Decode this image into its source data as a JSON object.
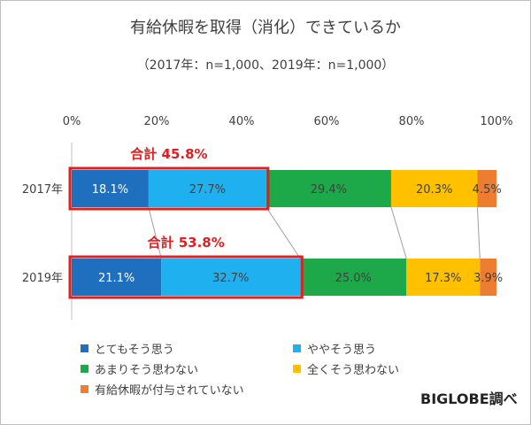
{
  "chart_data": {
    "type": "bar",
    "orientation": "horizontal",
    "stacked": "percent",
    "title": "有給休暇を取得（消化）できているか",
    "subtitle": "（2017年：n=1,000、2019年：n=1,000）",
    "categories": [
      "2017年",
      "2019年"
    ],
    "xlim": [
      0,
      100
    ],
    "x_ticks": [
      "0%",
      "20%",
      "40%",
      "60%",
      "80%",
      "100%"
    ],
    "grid": false,
    "legend_position": "bottom",
    "series": [
      {
        "name": "とてもそう思う",
        "color": "#1f6fbf",
        "values": [
          18.1,
          21.1
        ],
        "labels": [
          "18.1%",
          "21.1%"
        ]
      },
      {
        "name": "ややそう思う",
        "color": "#1fb0f0",
        "values": [
          27.7,
          32.7
        ],
        "labels": [
          "27.7%",
          "32.7%"
        ]
      },
      {
        "name": "あまりそう思わない",
        "color": "#1da84a",
        "values": [
          29.4,
          25.0
        ],
        "labels": [
          "29.4%",
          "25.0%"
        ]
      },
      {
        "name": "全くそう思わない",
        "color": "#ffc000",
        "values": [
          20.3,
          17.3
        ],
        "labels": [
          "20.3%",
          "17.3%"
        ]
      },
      {
        "name": "有給休暇が付与されていない",
        "color": "#ed7d31",
        "values": [
          4.5,
          3.9
        ],
        "labels": [
          "4.5%",
          "3.9%"
        ]
      }
    ],
    "annotations": [
      {
        "text": "合計 45.8%",
        "category": "2017年",
        "value": 45.8
      },
      {
        "text": "合計 53.8%",
        "category": "2019年",
        "value": 53.8
      }
    ],
    "highlight_color": "#e02020"
  },
  "brand": "BIGLOBE調べ"
}
